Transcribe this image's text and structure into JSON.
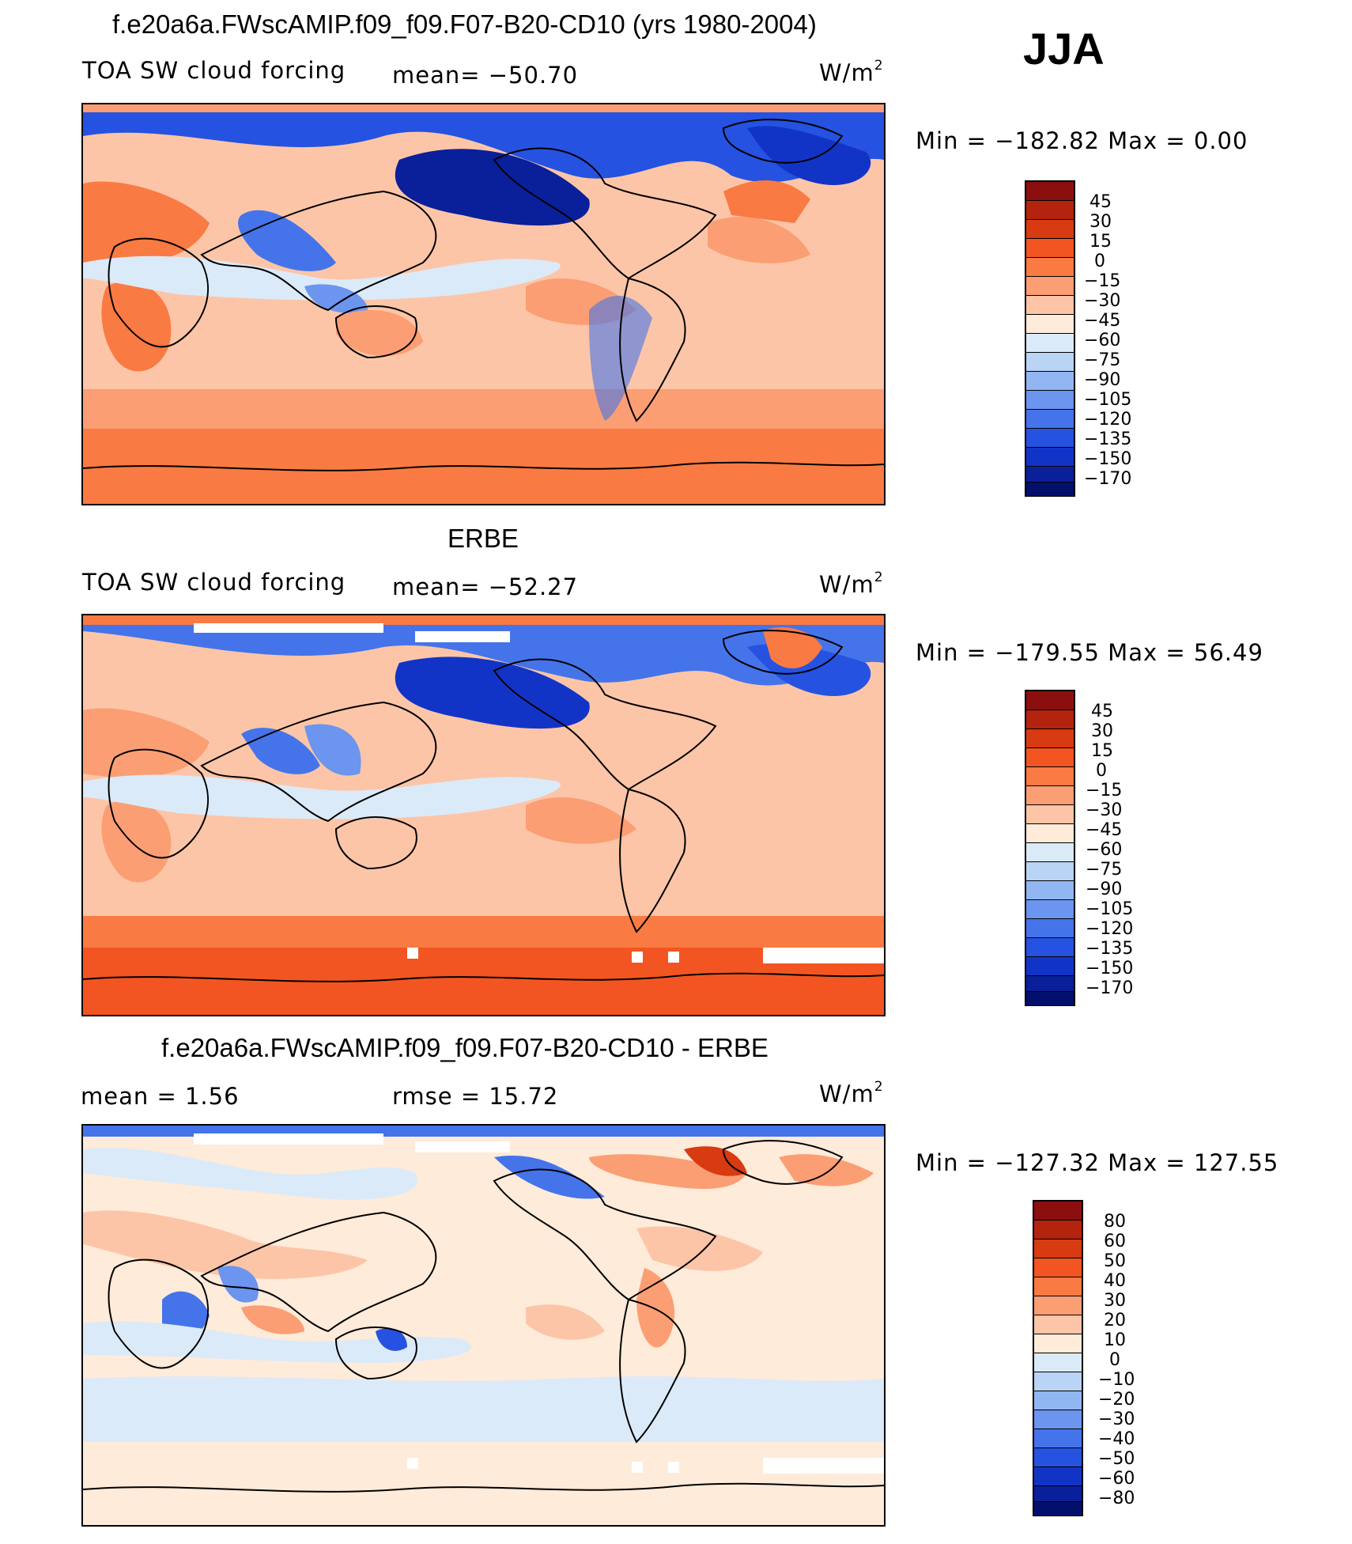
{
  "season": "JJA",
  "panels": [
    {
      "title": "f.e20a6a.FWscAMIP.f09_f09.F07-B20-CD10 (yrs 1980-2004)",
      "left_label": "TOA SW cloud forcing",
      "stat_label": "mean= −50.70",
      "unit_base": "W/m",
      "unit_exp": "2",
      "minmax": "Min = −182.82 Max =    0.00",
      "colorbar": {
        "ticks": [
          "45",
          "30",
          "15",
          "0",
          "−15",
          "−30",
          "−45",
          "−60",
          "−75",
          "−90",
          "−105",
          "−120",
          "−135",
          "−150",
          "−170"
        ],
        "colors": [
          "#8b0f0f",
          "#b4230d",
          "#d83a12",
          "#f35522",
          "#fa7a43",
          "#fb9e74",
          "#fdc5a7",
          "#feebd9",
          "#dbeaf8",
          "#b9d4f4",
          "#92b6f2",
          "#6b95ef",
          "#4574ea",
          "#2552e1",
          "#1234c6",
          "#0a1f9a",
          "#030f6c"
        ]
      }
    },
    {
      "title": "ERBE",
      "left_label": "TOA SW cloud forcing",
      "stat_label": "mean= −52.27",
      "unit_base": "W/m",
      "unit_exp": "2",
      "minmax": "Min = −179.55 Max =   56.49",
      "colorbar": {
        "ticks": [
          "45",
          "30",
          "15",
          "0",
          "−15",
          "−30",
          "−45",
          "−60",
          "−75",
          "−90",
          "−105",
          "−120",
          "−135",
          "−150",
          "−170"
        ],
        "colors": [
          "#8b0f0f",
          "#b4230d",
          "#d83a12",
          "#f35522",
          "#fa7a43",
          "#fb9e74",
          "#fdc5a7",
          "#feebd9",
          "#dbeaf8",
          "#b9d4f4",
          "#92b6f2",
          "#6b95ef",
          "#4574ea",
          "#2552e1",
          "#1234c6",
          "#0a1f9a",
          "#030f6c"
        ]
      }
    },
    {
      "title": "f.e20a6a.FWscAMIP.f09_f09.F07-B20-CD10 - ERBE",
      "left_label": "mean =    1.56",
      "stat_label": "rmse =   15.72",
      "unit_base": "W/m",
      "unit_exp": "2",
      "minmax": "Min = −127.32 Max = 127.55",
      "colorbar": {
        "ticks": [
          "80",
          "60",
          "50",
          "40",
          "30",
          "20",
          "10",
          "0",
          "−10",
          "−20",
          "−30",
          "−40",
          "−50",
          "−60",
          "−80"
        ],
        "colors": [
          "#8b0f0f",
          "#b4230d",
          "#d83a12",
          "#f35522",
          "#fa7a43",
          "#fb9e74",
          "#fdc5a7",
          "#feebd9",
          "#dbeaf8",
          "#b9d4f4",
          "#92b6f2",
          "#6b95ef",
          "#4574ea",
          "#2552e1",
          "#1234c6",
          "#0a1f9a",
          "#030f6c"
        ]
      }
    }
  ]
}
